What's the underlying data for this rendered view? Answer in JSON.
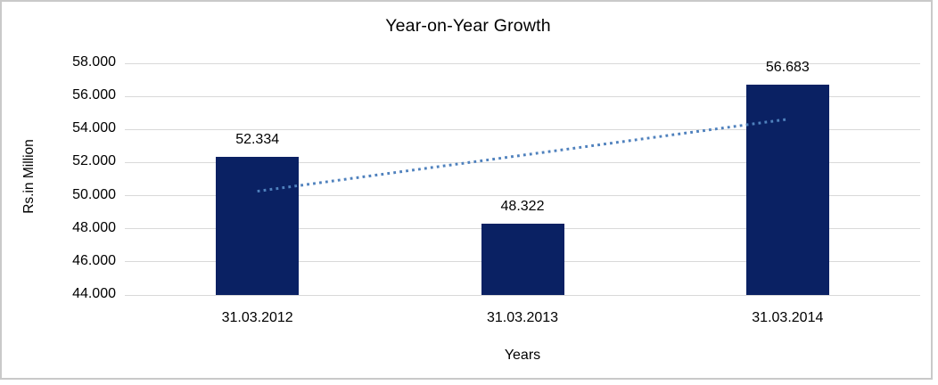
{
  "chart_data": {
    "type": "bar",
    "title": "Year-on-Year Growth",
    "xlabel": "Years",
    "ylabel": "Rs.in Million",
    "categories": [
      "31.03.2012",
      "31.03.2013",
      "31.03.2014"
    ],
    "values": [
      52.334,
      48.322,
      56.683
    ],
    "data_labels": [
      "52.334",
      "48.322",
      "56.683"
    ],
    "ylim": [
      44,
      58
    ],
    "ytick_values": [
      58,
      56,
      54,
      52,
      50,
      48,
      46,
      44
    ],
    "ytick_labels": [
      "58.000",
      "56.000",
      "54.000",
      "52.000",
      "50.000",
      "48.000",
      "46.000",
      "44.000"
    ],
    "grid": true,
    "legend": "none",
    "colors": {
      "bar": "#0a2163",
      "gridline": "#d9d9d9",
      "trendline": "#4f81bd",
      "text": "#000000",
      "frame_border": "#c9c9c9"
    },
    "trendline": {
      "type": "linear",
      "style": "dotted",
      "start_value": 50.27,
      "end_value": 54.62
    }
  }
}
